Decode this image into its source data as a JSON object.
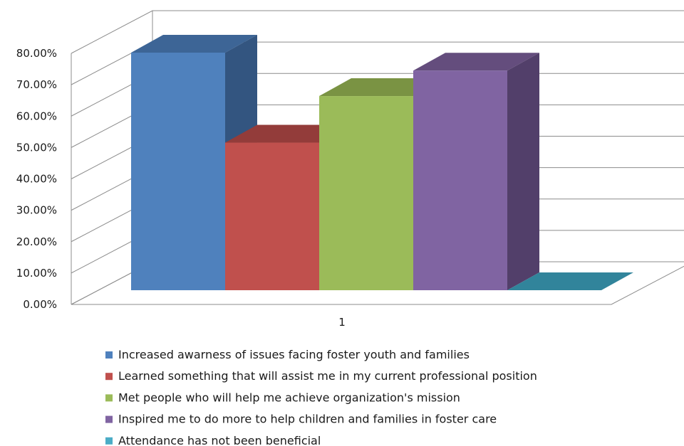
{
  "chart_data": {
    "type": "bar",
    "style": "3d-clustered-column",
    "categories": [
      "1"
    ],
    "y_tick_labels": [
      "0.00%",
      "10.00%",
      "20.00%",
      "30.00%",
      "40.00%",
      "50.00%",
      "60.00%",
      "70.00%",
      "80.00%"
    ],
    "ylim": [
      0,
      0.8
    ],
    "grid": true,
    "legend_position": "bottom",
    "series": [
      {
        "name": "Increased awarness of issues facing foster youth and families",
        "values": [
          0.755
        ],
        "color": "#4F81BD",
        "color_side": "#335580",
        "color_top": "#3D6596"
      },
      {
        "name": "Learned something that will assist me in my current professional position",
        "values": [
          0.469
        ],
        "color": "#C0504D",
        "color_side": "#8B3A38",
        "color_top": "#933C3A"
      },
      {
        "name": "Met people who will help me achieve organization's mission",
        "values": [
          0.617
        ],
        "color": "#9BBB59",
        "color_side": "#6E8A3F",
        "color_top": "#7A9343"
      },
      {
        "name": "Inspired me to do more to help children and families in foster care",
        "values": [
          0.698
        ],
        "color": "#8064A2",
        "color_side": "#523F6A",
        "color_top": "#644D7D"
      },
      {
        "name": "Attendance has not been beneficial",
        "values": [
          0.0
        ],
        "color": "#4BACC6",
        "color_side": "#2F7E93",
        "color_top": "#31849B"
      }
    ]
  }
}
